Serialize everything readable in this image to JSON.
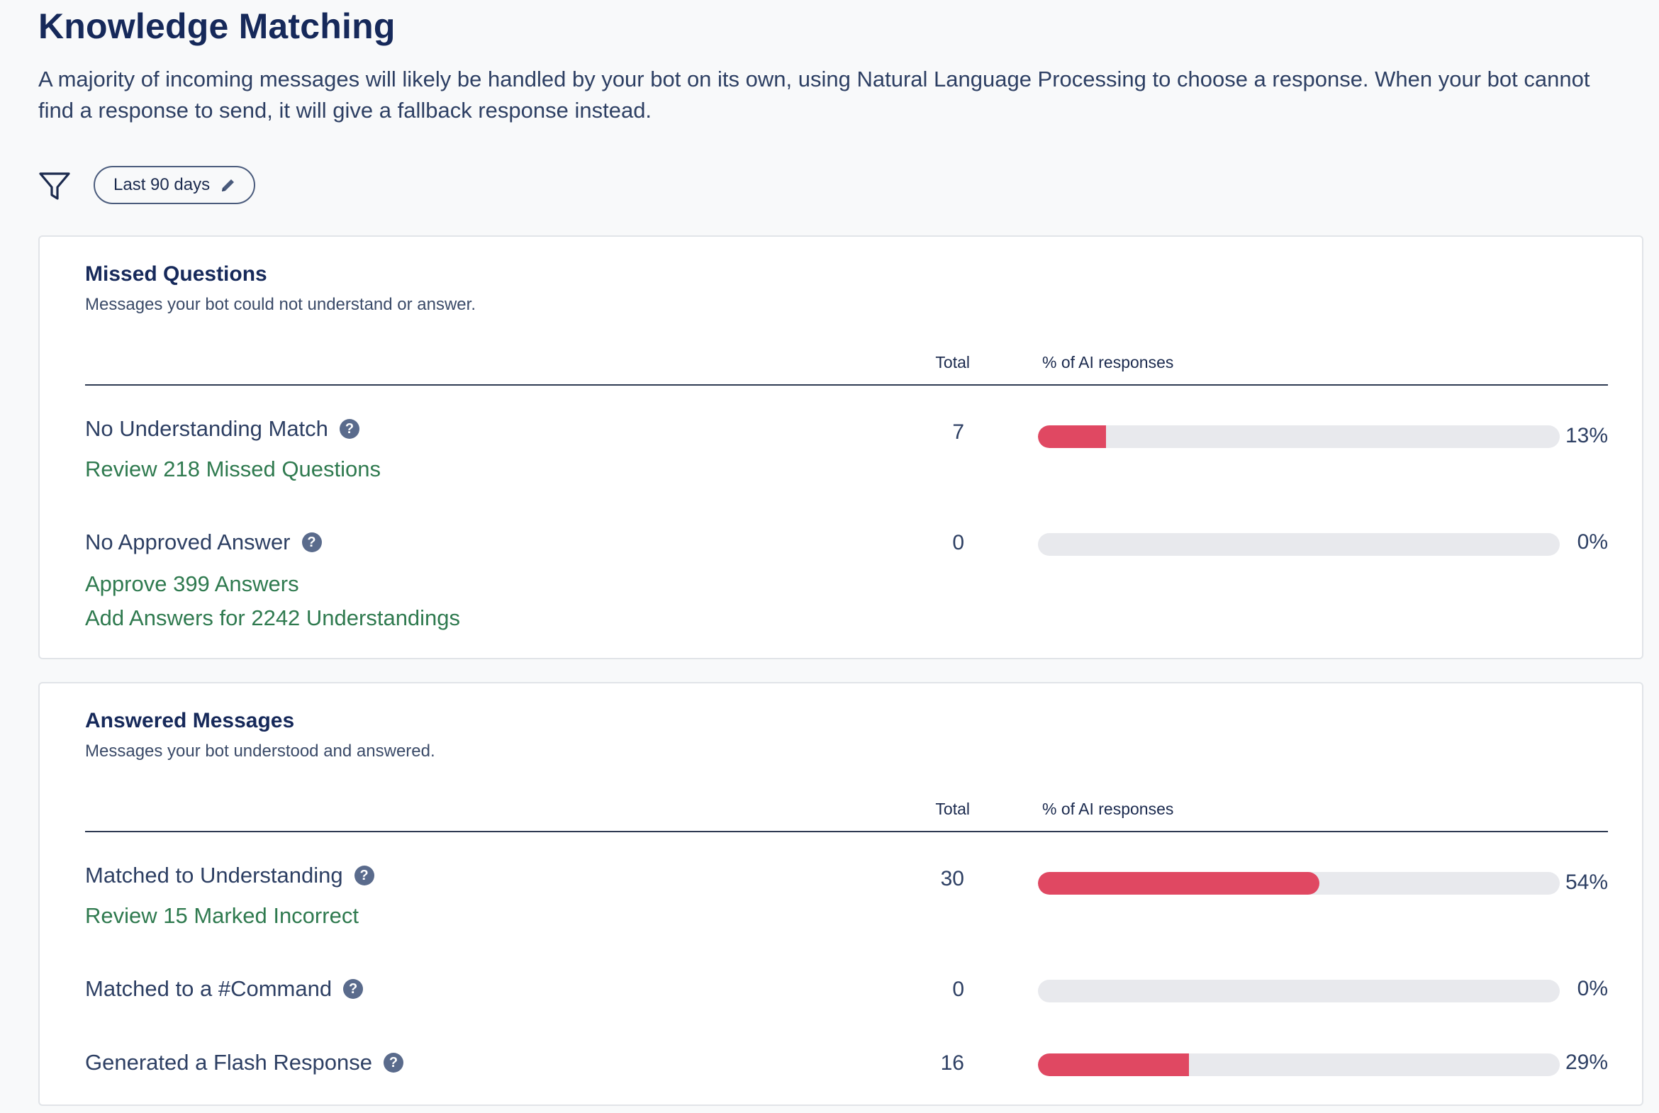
{
  "header": {
    "title": "Knowledge Matching",
    "description": "A majority of incoming messages will likely be handled by your bot on its own, using Natural Language Processing to choose a response. When your bot cannot find a response to send, it will give a fallback response instead."
  },
  "filter": {
    "icon": "filter-icon",
    "date_range_label": "Last 90 days",
    "edit_icon": "pencil-icon"
  },
  "colors": {
    "bar_fill": "#e04862",
    "bar_track": "#e8e9ed",
    "link": "#2f7a4f"
  },
  "missed": {
    "title": "Missed Questions",
    "subtitle": "Messages your bot could not understand or answer.",
    "col_total": "Total",
    "col_pct": "% of AI responses",
    "rows": [
      {
        "label": "No Understanding Match",
        "help": "?",
        "total": "7",
        "percent_text": "13%",
        "percent": 13,
        "links": [
          "Review 218 Missed Questions"
        ]
      },
      {
        "label": "No Approved Answer",
        "help": "?",
        "total": "0",
        "percent_text": "0%",
        "percent": 0,
        "links": [
          "Approve 399 Answers",
          "Add Answers for 2242 Understandings"
        ]
      }
    ]
  },
  "answered": {
    "title": "Answered Messages",
    "subtitle": "Messages your bot understood and answered.",
    "col_total": "Total",
    "col_pct": "% of AI responses",
    "rows": [
      {
        "label": "Matched to Understanding",
        "help": "?",
        "total": "30",
        "percent_text": "54%",
        "percent": 54,
        "links": [
          "Review 15 Marked Incorrect"
        ]
      },
      {
        "label": "Matched to a #Command",
        "help": "?",
        "total": "0",
        "percent_text": "0%",
        "percent": 0
      },
      {
        "label": "Generated a Flash Response",
        "help": "?",
        "total": "16",
        "percent_text": "29%",
        "percent": 29
      }
    ]
  }
}
